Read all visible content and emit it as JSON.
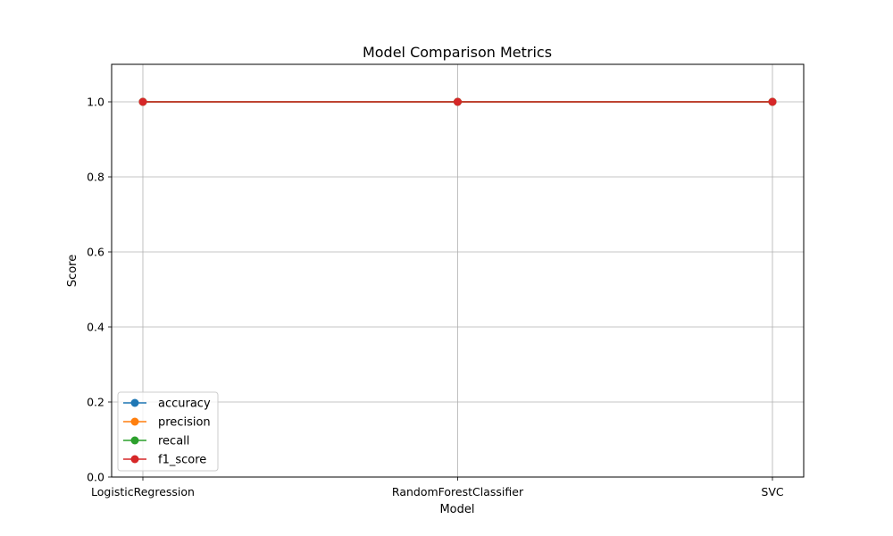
{
  "chart_data": {
    "type": "line",
    "title": "Model Comparison Metrics",
    "xlabel": "Model",
    "ylabel": "Score",
    "categories": [
      "LogisticRegression",
      "RandomForestClassifier",
      "SVC"
    ],
    "ylim": [
      0,
      1.1
    ],
    "yticks": [
      "0.0",
      "0.2",
      "0.4",
      "0.6",
      "0.8",
      "1.0"
    ],
    "grid": true,
    "legend_position": "lower-left",
    "series": [
      {
        "name": "accuracy",
        "values": [
          1.0,
          1.0,
          1.0
        ],
        "color": "#1f77b4"
      },
      {
        "name": "precision",
        "values": [
          1.0,
          1.0,
          1.0
        ],
        "color": "#ff7f0e"
      },
      {
        "name": "recall",
        "values": [
          1.0,
          1.0,
          1.0
        ],
        "color": "#2ca02c"
      },
      {
        "name": "f1_score",
        "values": [
          1.0,
          1.0,
          1.0
        ],
        "color": "#d62728"
      }
    ]
  }
}
